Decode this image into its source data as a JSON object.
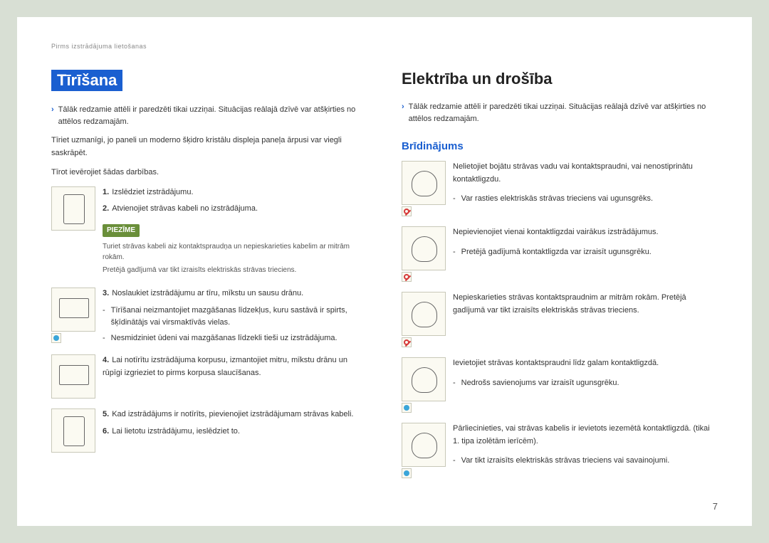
{
  "colors": {
    "page_bg": "#d8dfd4",
    "paper_bg": "#ffffff",
    "accent_blue": "#1a5fd0",
    "note_green": "#6a8f3a",
    "fig_bg": "#fbfaf2",
    "fig_border": "#c8c8b8",
    "info_icon": "#3aa5d9",
    "no_icon": "#d63a3a"
  },
  "breadcrumb": "Pirms izstrādājuma lietošanas",
  "page_number": "7",
  "left": {
    "title": "Tīrīšana",
    "intro_bullet": "Tālāk redzamie attēli ir paredzēti tikai uzziņai. Situācijas reālajā dzīvē var atšķirties no attēlos redzamajām.",
    "p1": "Tīriet uzmanīgi, jo paneli un moderno šķidro kristālu displeja paneļa ārpusi var viegli saskrāpēt.",
    "p2": "Tīrot ievērojiet šādas darbības.",
    "block1": {
      "step1": "Izslēdziet izstrādājumu.",
      "step2": "Atvienojiet strāvas kabeli no izstrādājuma.",
      "note_label": "PIEZĪME",
      "note_l1": "Turiet strāvas kabeli aiz kontaktspraudņa un nepieskarieties kabelim ar mitrām rokām.",
      "note_l2": "Pretējā gadījumā var tikt izraisīts elektriskās strāvas trieciens."
    },
    "block2": {
      "step3": "Noslaukiet izstrādājumu ar tīru, mīkstu un sausu drānu.",
      "dash1": "Tīrīšanai neizmantojiet mazgāšanas līdzekļus, kuru sastāvā ir spirts, šķīdinātājs vai virsmaktīvās vielas.",
      "dash2": "Nesmidziniet ūdeni vai mazgāšanas līdzekli tieši uz izstrādājuma."
    },
    "block3": {
      "step4": "Lai notīrītu izstrādājuma korpusu, izmantojiet mitru, mīkstu drānu un rūpīgi izgrieziet to pirms korpusa slaucīšanas."
    },
    "block4": {
      "step5": "Kad izstrādājums ir notīrīts, pievienojiet izstrādājumam strāvas kabeli.",
      "step6": "Lai lietotu izstrādājumu, ieslēdziet to."
    }
  },
  "right": {
    "title": "Elektrība un drošība",
    "intro_bullet": "Tālāk redzamie attēli ir paredzēti tikai uzziņai. Situācijas reālajā dzīvē var atšķirties no attēlos redzamajām.",
    "subheading": "Brīdinājums",
    "w1": {
      "text": "Nelietojiet bojātu strāvas vadu vai kontaktspraudni, vai nenostiprinātu kontaktligzdu.",
      "dash": "Var rasties elektriskās strāvas trieciens vai ugunsgrēks."
    },
    "w2": {
      "text": "Nepievienojiet vienai kontaktligzdai vairākus izstrādājumus.",
      "dash": "Pretējā gadījumā kontaktligzda var izraisīt ugunsgrēku."
    },
    "w3": {
      "text": "Nepieskarieties strāvas kontaktspraudnim ar mitrām rokām. Pretējā gadījumā var tikt izraisīts elektriskās strāvas trieciens."
    },
    "w4": {
      "text": "Ievietojiet strāvas kontaktspraudni līdz galam kontaktligzdā.",
      "dash": "Nedrošs savienojums var izraisīt ugunsgrēku."
    },
    "w5": {
      "text": "Pārliecinieties, vai strāvas kabelis ir ievietots iezemētā kontaktligzdā. (tikai 1. tipa izolētām ierīcēm).",
      "dash": "Var tikt izraisīts elektriskās strāvas trieciens vai savainojumi."
    }
  }
}
